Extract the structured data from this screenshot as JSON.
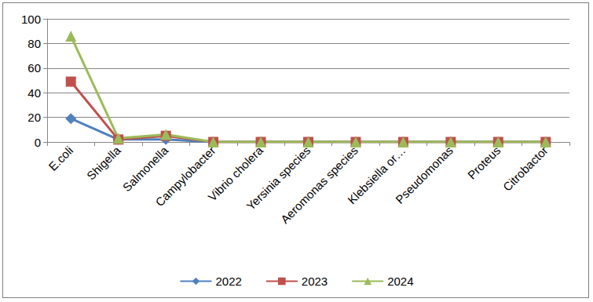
{
  "chart_data": {
    "type": "line",
    "categories": [
      "E.coli",
      "Shigella",
      "Salmonella",
      "Campylobacter",
      "Vibrio cholera",
      "Yersinia species",
      "Aeromonas species",
      "Klebsiella or…",
      "Pseudomonas",
      "Proteus",
      "Citrobactor"
    ],
    "series": [
      {
        "name": "2022",
        "color": "#4f81bd",
        "marker": "diamond",
        "values": [
          19,
          2,
          2,
          0,
          0,
          0,
          0,
          0,
          0,
          0,
          0
        ]
      },
      {
        "name": "2023",
        "color": "#c0504d",
        "marker": "square",
        "values": [
          49,
          2,
          5,
          0,
          0,
          0,
          0,
          0,
          0,
          0,
          0
        ]
      },
      {
        "name": "2024",
        "color": "#9bbb59",
        "marker": "triangle",
        "values": [
          86,
          3,
          6,
          0,
          0,
          0,
          0,
          0,
          0,
          0,
          0
        ]
      }
    ],
    "ylim": [
      0,
      100
    ],
    "yticks": [
      0,
      20,
      40,
      60,
      80,
      100
    ],
    "grid": true,
    "legend": "bottom"
  }
}
